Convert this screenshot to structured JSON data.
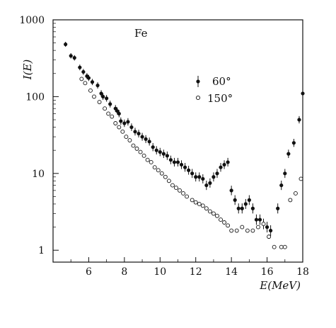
{
  "chart_data": {
    "type": "scatter",
    "title": "",
    "annotation": "Fe",
    "xlabel": "E(MeV)",
    "ylabel": "I(E)",
    "xlim": [
      4,
      18
    ],
    "ylim": [
      0.7,
      1000
    ],
    "y_scale": "log",
    "grid": false,
    "legend_position": "upper-middle-right",
    "x_ticks": [
      "6",
      "8",
      "10",
      "12",
      "14",
      "16",
      "18"
    ],
    "y_ticks": [
      "1",
      "10",
      "100",
      "1000"
    ],
    "series": [
      {
        "name": "60°",
        "marker": "filled-circle-with-errorbar",
        "x": [
          4.7,
          5.0,
          5.2,
          5.5,
          5.7,
          5.9,
          6.0,
          6.2,
          6.5,
          6.7,
          6.8,
          7.0,
          7.2,
          7.5,
          7.6,
          7.7,
          7.8,
          8.0,
          8.2,
          8.4,
          8.6,
          8.8,
          9.0,
          9.2,
          9.4,
          9.6,
          9.8,
          10.0,
          10.2,
          10.4,
          10.6,
          10.8,
          11.0,
          11.2,
          11.4,
          11.6,
          11.8,
          12.0,
          12.2,
          12.4,
          12.6,
          12.8,
          13.0,
          13.2,
          13.4,
          13.6,
          13.8,
          14.0,
          14.2,
          14.4,
          14.6,
          14.8,
          15.0,
          15.2,
          15.4,
          15.6,
          15.8,
          16.0,
          16.2,
          16.6,
          16.8,
          17.0,
          17.2,
          17.5,
          17.8,
          18.0
        ],
        "y": [
          480,
          340,
          320,
          240,
          210,
          185,
          175,
          155,
          140,
          110,
          100,
          95,
          80,
          70,
          65,
          60,
          48,
          45,
          47,
          40,
          35,
          33,
          30,
          28,
          26,
          22,
          20,
          19,
          18,
          17,
          15,
          14,
          14,
          13,
          12,
          11,
          10,
          9,
          9,
          8.5,
          7,
          7.5,
          9,
          10,
          12,
          13,
          14,
          6,
          4.5,
          3.5,
          3.5,
          4,
          4.5,
          3.5,
          2.5,
          2.5,
          2.2,
          2,
          1.8,
          3.5,
          7,
          10,
          18,
          25,
          50,
          110
        ]
      },
      {
        "name": "150°",
        "marker": "open-circle",
        "x": [
          5.6,
          5.8,
          6.1,
          6.3,
          6.6,
          6.9,
          7.1,
          7.3,
          7.5,
          7.7,
          7.9,
          8.1,
          8.3,
          8.5,
          8.7,
          8.9,
          9.1,
          9.3,
          9.5,
          9.7,
          9.9,
          10.1,
          10.3,
          10.5,
          10.7,
          10.9,
          11.1,
          11.3,
          11.5,
          11.8,
          12.0,
          12.2,
          12.4,
          12.6,
          12.8,
          13.0,
          13.2,
          13.4,
          13.6,
          13.8,
          14.0,
          14.3,
          14.6,
          14.9,
          15.2,
          15.5,
          15.8,
          16.1,
          16.4,
          16.8,
          17.0,
          17.3,
          17.6,
          17.9
        ],
        "y": [
          170,
          150,
          120,
          100,
          85,
          70,
          60,
          55,
          45,
          40,
          35,
          30,
          27,
          23,
          21,
          19,
          17,
          15,
          14,
          12,
          11,
          10,
          9,
          8,
          7,
          6.5,
          6,
          5.5,
          5,
          4.5,
          4.2,
          4,
          3.8,
          3.5,
          3.2,
          3.0,
          2.8,
          2.5,
          2.3,
          2.1,
          1.8,
          1.8,
          2.0,
          1.8,
          1.8,
          2.0,
          2.2,
          1.5,
          1.1,
          1.1,
          1.1,
          4.5,
          5.5,
          8.5
        ]
      }
    ]
  }
}
